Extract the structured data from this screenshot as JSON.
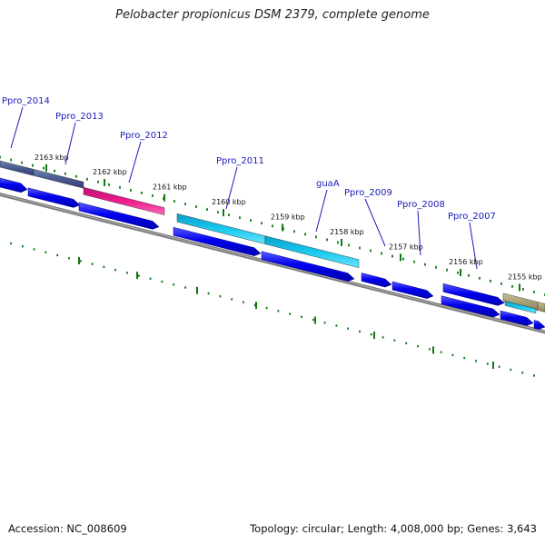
{
  "title": "Pelobacter propionicus DSM 2379, complete genome",
  "footer": {
    "accession": "Accession: NC_008609",
    "summary": "Topology: circular; Length: 4,008,000 bp; Genes: 3,643"
  },
  "colors": {
    "background": "#ffffff",
    "cds_blue": "#0000ee",
    "gene_label": "#1a1ab8",
    "tick_green": "#117711",
    "backbone_gray": "#808080",
    "cog_slate": "#4a5a90",
    "cog_magenta": "#ee1a8c",
    "cog_cyan": "#19c8ee",
    "cog_khaki": "#aaa07a"
  },
  "ruler_labels": [
    "2163 kbp",
    "2162 kbp",
    "2161 kbp",
    "2160 kbp",
    "2159 kbp",
    "2158 kbp",
    "2157 kbp",
    "2156 kbp",
    "2155 kbp"
  ],
  "gene_labels": [
    "Ppro_2014",
    "Ppro_2013",
    "Ppro_2012",
    "Ppro_2011",
    "guaA",
    "Ppro_2009",
    "Ppro_2008",
    "Ppro_2007"
  ]
}
